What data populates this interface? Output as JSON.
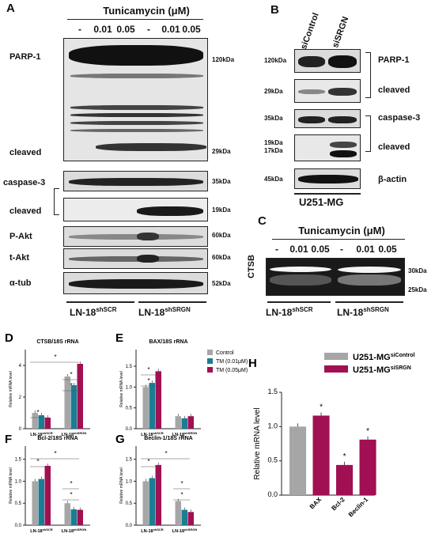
{
  "colors": {
    "gray": "#a6a6a6",
    "teal": "#1b7d93",
    "maroon": "#a01053"
  },
  "panelA": {
    "letter": "A",
    "treatment_title": "Tunicamycin (μM)",
    "lanes": [
      "-",
      "0.01",
      "0.05",
      "-",
      "0.01",
      "0.05"
    ],
    "labels": {
      "parp": "PARP-1",
      "cleaved1": "cleaved",
      "caspase": "caspase-3",
      "cleaved2": "cleaved",
      "pakt": "P-Akt",
      "takt": "t-Akt",
      "atub": "α-tub"
    },
    "kda": {
      "k120": "120kDa",
      "k29": "29kDa",
      "k35": "35kDa",
      "k19": "19kDa",
      "k60a": "60kDa",
      "k60b": "60kDa",
      "k52": "52kDa"
    },
    "group1": "LN-18",
    "group1_sup": "shSCR",
    "group2": "LN-18",
    "group2_sup": "shSRGN"
  },
  "panelB": {
    "letter": "B",
    "lanes": [
      "siControl",
      "siSRGN"
    ],
    "labels": {
      "parp": "PARP-1",
      "cleaved1": "cleaved",
      "caspase": "caspase-3",
      "cleaved2": "cleaved",
      "actin": "β-actin"
    },
    "kda": {
      "k120": "120kDa",
      "k29": "29kDa",
      "k35": "35kDa",
      "k19": "19kDa",
      "k17": "17kDa",
      "k45": "45kDa"
    },
    "cell": "U251-MG"
  },
  "panelC": {
    "letter": "C",
    "treatment_title": "Tunicamycin (μM)",
    "lanes": [
      "-",
      "0.01",
      "0.05",
      "-",
      "0.01",
      "0.05"
    ],
    "ylabel": "CTSB",
    "kda": {
      "k30": "30kDa",
      "k25": "25kDa"
    },
    "group1": "LN-18",
    "group1_sup": "shSCR",
    "group2": "LN-18",
    "group2_sup": "shSRGN"
  },
  "chart_data": [
    {
      "panel": "D",
      "type": "bar",
      "title": "CTSB/18S rRNA",
      "ylabel": "Relative mRNA level",
      "categories": [
        "LN-18shSCR",
        "LN-18shSRGN"
      ],
      "yticks": [
        0,
        2,
        4
      ],
      "ylim": [
        0,
        5
      ],
      "series": [
        {
          "name": "Control",
          "values": [
            1.0,
            3.3
          ]
        },
        {
          "name": "TM (0.01μM)",
          "values": [
            0.85,
            2.75
          ]
        },
        {
          "name": "TM (0.05μM)",
          "values": [
            0.7,
            4.1
          ]
        }
      ]
    },
    {
      "panel": "E",
      "type": "bar",
      "title": "BAX/18S rRNA",
      "ylabel": "Relative mRNA level",
      "categories": [
        "LN-18shSCR",
        "LN-18shSRGN"
      ],
      "yticks": [
        0.0,
        0.5,
        1.0,
        1.5
      ],
      "ylim": [
        0,
        1.9
      ],
      "series": [
        {
          "name": "Control",
          "values": [
            1.0,
            0.3
          ]
        },
        {
          "name": "TM (0.01μM)",
          "values": [
            1.1,
            0.25
          ]
        },
        {
          "name": "TM (0.05μM)",
          "values": [
            1.38,
            0.3
          ]
        }
      ]
    },
    {
      "panel": "F",
      "type": "bar",
      "title": "Bcl-2/18S rRNA",
      "ylabel": "Relative mRNA level",
      "categories": [
        "LN-18shSCR",
        "LN-18shSRGN"
      ],
      "yticks": [
        0.0,
        0.5,
        1.0,
        1.5
      ],
      "ylim": [
        0,
        1.8
      ],
      "series": [
        {
          "values": [
            1.0,
            0.5
          ]
        },
        {
          "values": [
            1.05,
            0.36
          ]
        },
        {
          "values": [
            1.35,
            0.35
          ]
        }
      ]
    },
    {
      "panel": "G",
      "type": "bar",
      "title": "Beclin-1/18S rRNA",
      "ylabel": "Relative mRNA level",
      "categories": [
        "LN-18shSCR",
        "LN-18shSRGN"
      ],
      "yticks": [
        0.0,
        0.5,
        1.0,
        1.5
      ],
      "ylim": [
        0,
        1.8
      ],
      "series": [
        {
          "values": [
            1.0,
            0.55
          ]
        },
        {
          "values": [
            1.07,
            0.35
          ]
        },
        {
          "values": [
            1.37,
            0.3
          ]
        }
      ]
    },
    {
      "panel": "H",
      "type": "bar",
      "ylabel": "Relative mRNA level",
      "categories": [
        "BAX",
        "Bcl-2",
        "Beclin-1"
      ],
      "yticks": [
        0.0,
        0.5,
        1.0,
        1.5
      ],
      "ylim": [
        0,
        1.5
      ],
      "series": [
        {
          "name": "U251-MGsiControl",
          "values": [
            1.0,
            null,
            null
          ]
        },
        {
          "name": "U251-MGsiSRGN",
          "values": [
            1.16,
            0.44,
            0.81
          ]
        }
      ]
    }
  ],
  "legendDE": [
    "Control",
    "TM (0.01μM)",
    "TM (0.05μM)"
  ],
  "legendH": [
    {
      "base": "U251-MG",
      "sup": "siControl"
    },
    {
      "base": "U251-MG",
      "sup": "siSRGN"
    }
  ],
  "star": "*"
}
